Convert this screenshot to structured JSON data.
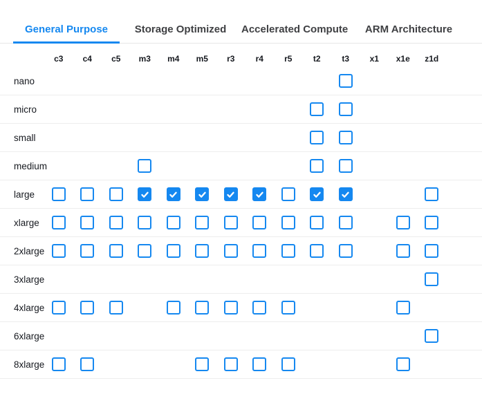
{
  "colors": {
    "accent": "#1588f0",
    "tab_inactive": "#3f4043",
    "text": "#16191f",
    "row_border": "#ededed",
    "tabbar_border": "#e6e6e6"
  },
  "tabs": [
    {
      "label": "General Purpose",
      "active": true
    },
    {
      "label": "Storage Optimized",
      "active": false
    },
    {
      "label": "Accelerated Compute",
      "active": false
    },
    {
      "label": "ARM Architecture",
      "active": false
    }
  ],
  "matrix": {
    "columns": [
      "c3",
      "c4",
      "c5",
      "m3",
      "m4",
      "m5",
      "r3",
      "r4",
      "r5",
      "t2",
      "t3",
      "x1",
      "x1e",
      "z1d"
    ],
    "rows": [
      {
        "label": "nano",
        "cells": [
          "none",
          "none",
          "none",
          "none",
          "none",
          "none",
          "none",
          "none",
          "none",
          "none",
          "unchecked",
          "none",
          "none",
          "none"
        ]
      },
      {
        "label": "micro",
        "cells": [
          "none",
          "none",
          "none",
          "none",
          "none",
          "none",
          "none",
          "none",
          "none",
          "unchecked",
          "unchecked",
          "none",
          "none",
          "none"
        ]
      },
      {
        "label": "small",
        "cells": [
          "none",
          "none",
          "none",
          "none",
          "none",
          "none",
          "none",
          "none",
          "none",
          "unchecked",
          "unchecked",
          "none",
          "none",
          "none"
        ]
      },
      {
        "label": "medium",
        "cells": [
          "none",
          "none",
          "none",
          "unchecked",
          "none",
          "none",
          "none",
          "none",
          "none",
          "unchecked",
          "unchecked",
          "none",
          "none",
          "none"
        ]
      },
      {
        "label": "large",
        "cells": [
          "unchecked",
          "unchecked",
          "unchecked",
          "checked",
          "checked",
          "checked",
          "checked",
          "checked",
          "unchecked",
          "checked",
          "checked",
          "none",
          "none",
          "unchecked"
        ]
      },
      {
        "label": "xlarge",
        "cells": [
          "unchecked",
          "unchecked",
          "unchecked",
          "unchecked",
          "unchecked",
          "unchecked",
          "unchecked",
          "unchecked",
          "unchecked",
          "unchecked",
          "unchecked",
          "none",
          "unchecked",
          "unchecked"
        ]
      },
      {
        "label": "2xlarge",
        "cells": [
          "unchecked",
          "unchecked",
          "unchecked",
          "unchecked",
          "unchecked",
          "unchecked",
          "unchecked",
          "unchecked",
          "unchecked",
          "unchecked",
          "unchecked",
          "none",
          "unchecked",
          "unchecked"
        ]
      },
      {
        "label": "3xlarge",
        "cells": [
          "none",
          "none",
          "none",
          "none",
          "none",
          "none",
          "none",
          "none",
          "none",
          "none",
          "none",
          "none",
          "none",
          "unchecked"
        ]
      },
      {
        "label": "4xlarge",
        "cells": [
          "unchecked",
          "unchecked",
          "unchecked",
          "none",
          "unchecked",
          "unchecked",
          "unchecked",
          "unchecked",
          "unchecked",
          "none",
          "none",
          "none",
          "unchecked",
          "none"
        ]
      },
      {
        "label": "6xlarge",
        "cells": [
          "none",
          "none",
          "none",
          "none",
          "none",
          "none",
          "none",
          "none",
          "none",
          "none",
          "none",
          "none",
          "none",
          "unchecked"
        ]
      },
      {
        "label": "8xlarge",
        "cells": [
          "unchecked",
          "unchecked",
          "none",
          "none",
          "none",
          "unchecked",
          "unchecked",
          "unchecked",
          "unchecked",
          "none",
          "none",
          "none",
          "unchecked",
          "none"
        ]
      }
    ]
  }
}
